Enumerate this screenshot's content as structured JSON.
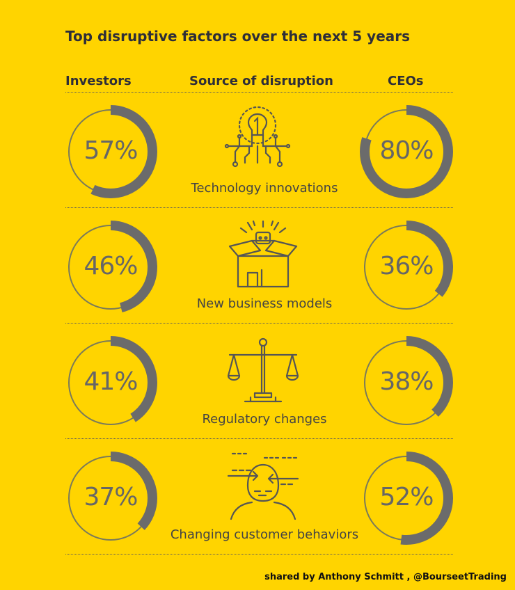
{
  "title": "Top disruptive factors over the next 5 years",
  "headers": {
    "investors": "Investors",
    "source": "Source of disruption",
    "ceos": "CEOs"
  },
  "credit": "shared by Anthony Schmitt , @BourseetTrading",
  "colors": {
    "background": "#ffd400",
    "ring": "#6b6b6b",
    "text": "#2e2e38"
  },
  "chart_data": {
    "type": "donut",
    "title": "Top disruptive factors over the next 5 years",
    "categories": [
      "Technology innovations",
      "New business models",
      "Regulatory changes",
      "Changing customer behaviors"
    ],
    "series": [
      {
        "name": "Investors",
        "values": [
          57,
          46,
          41,
          37
        ],
        "labels": [
          "57%",
          "46%",
          "41%",
          "37%"
        ]
      },
      {
        "name": "CEOs",
        "values": [
          80,
          36,
          38,
          52
        ],
        "labels": [
          "80%",
          "36%",
          "38%",
          "52%"
        ]
      }
    ],
    "unit": "%",
    "icons": [
      "lightbulb-circuit-icon",
      "box-ideas-icon",
      "balance-scale-icon",
      "head-arrows-icon"
    ]
  }
}
